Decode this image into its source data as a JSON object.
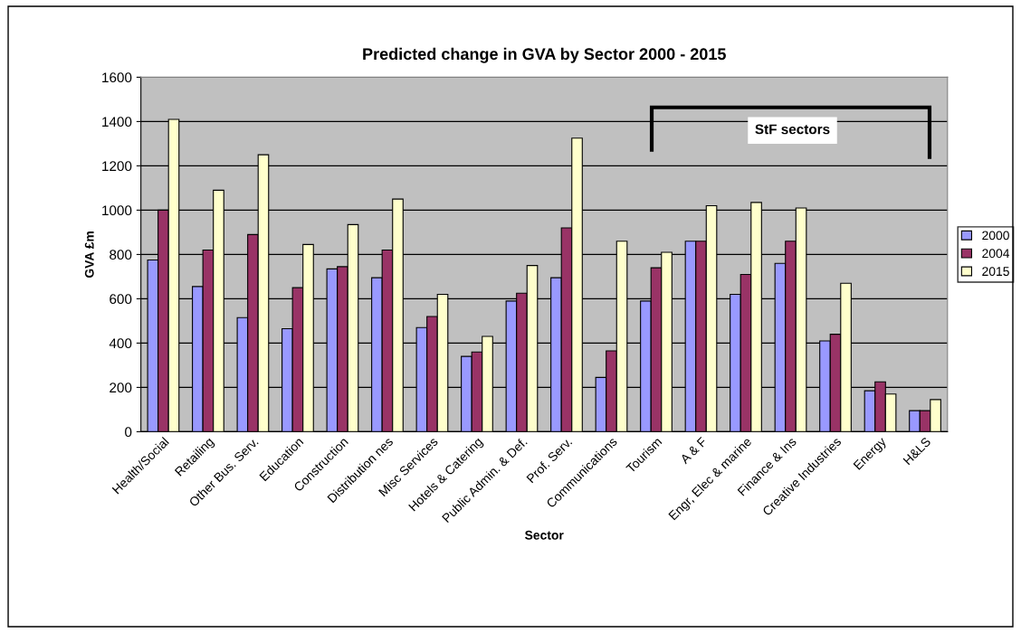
{
  "chart_data": {
    "type": "bar",
    "title": "Predicted change in GVA by Sector 2000 - 2015",
    "xlabel": "Sector",
    "ylabel": "GVA £m",
    "categories": [
      "Health/Social",
      "Retailing",
      "Other Bus. Serv.",
      "Education",
      "Construction",
      "Distribution nes",
      "Misc Services",
      "Hotels & Catering",
      "Public Admin. & Def.",
      "Prof. Serv.",
      "Communications",
      "Tourism",
      "A & F",
      "Engr, Elec & marine",
      "Finance & Ins",
      "Creative Industries",
      "Energy",
      "H&LS"
    ],
    "series": [
      {
        "name": "2000",
        "color": "#9999ff",
        "values": [
          775,
          655,
          515,
          465,
          735,
          695,
          470,
          340,
          590,
          695,
          245,
          590,
          860,
          620,
          760,
          410,
          185,
          95
        ]
      },
      {
        "name": "2004",
        "color": "#993366",
        "values": [
          1000,
          820,
          890,
          650,
          745,
          820,
          520,
          360,
          625,
          920,
          365,
          740,
          860,
          710,
          860,
          440,
          225,
          95
        ]
      },
      {
        "name": "2015",
        "color": "#ffffcc",
        "values": [
          1410,
          1090,
          1250,
          845,
          935,
          1050,
          620,
          430,
          750,
          1325,
          860,
          810,
          1020,
          1035,
          1010,
          670,
          170,
          145
        ]
      }
    ],
    "ylim": [
      0,
      1600
    ],
    "yticks": [
      0,
      200,
      400,
      600,
      800,
      1000,
      1200,
      1400,
      1600
    ],
    "grid": "y",
    "legend": "right",
    "annotations": [
      "StF sectors"
    ]
  }
}
